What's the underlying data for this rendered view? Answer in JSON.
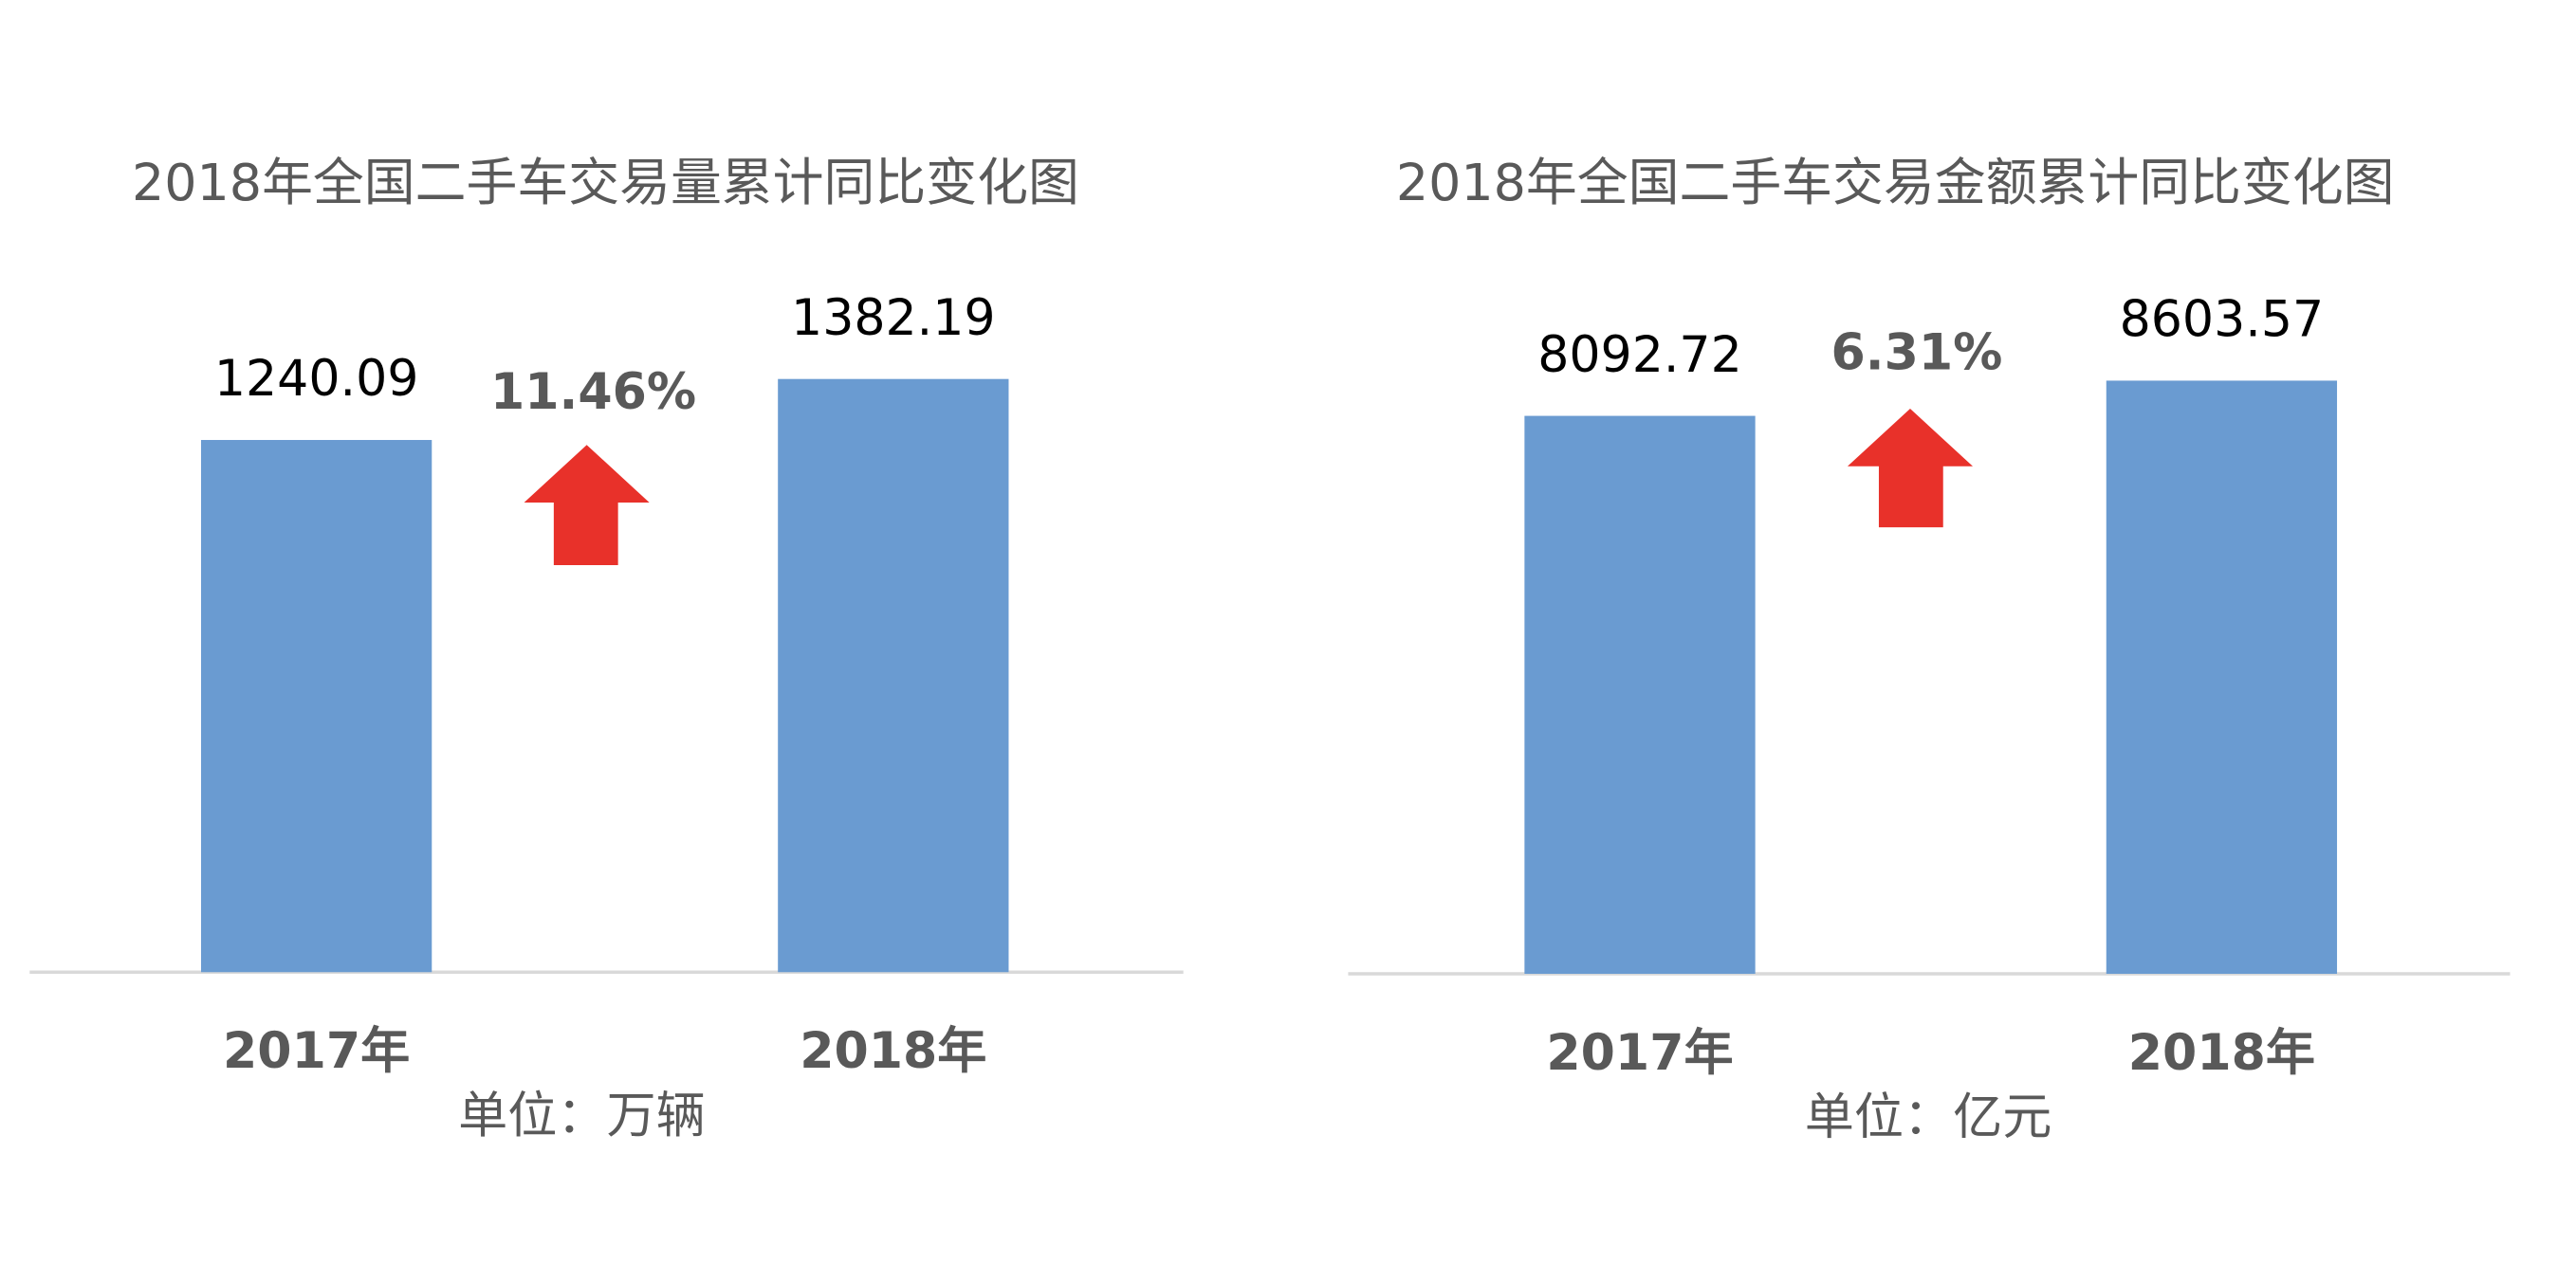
{
  "chart_data": [
    {
      "type": "bar",
      "title": "2018年全国二手车交易量累计同比变化图",
      "categories": [
        "2017年",
        "2018年"
      ],
      "values": [
        1240.09,
        1382.19
      ],
      "color": "#6a9bd1",
      "annotation": "11.46%",
      "unit": "单位：万辆"
    },
    {
      "type": "bar",
      "title": "2018年全国二手车交易金额累计同比变化图",
      "categories": [
        "2017年",
        "2018年"
      ],
      "values": [
        8092.72,
        8603.57
      ],
      "color": "#6a9bd1",
      "annotation": "6.31%",
      "unit": "单位：亿元"
    }
  ]
}
